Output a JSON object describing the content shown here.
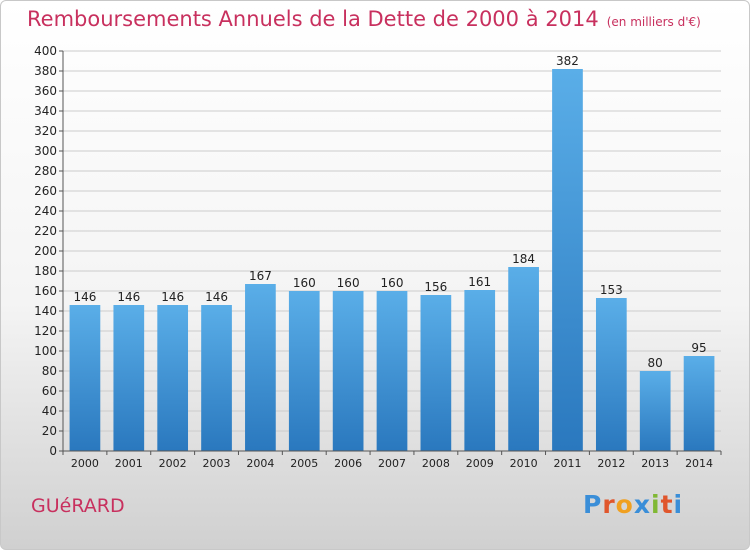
{
  "header": {
    "title": "Remboursements Annuels de la Dette de 2000 à 2014",
    "subtitle": "(en milliers d'€)"
  },
  "footer": {
    "city": "GUéRARD",
    "logo": {
      "letters": [
        "P",
        "r",
        "o",
        "x",
        "i",
        "t",
        "i"
      ],
      "colors": [
        "#3a8ed8",
        "#e0562c",
        "#f0a020",
        "#3a8ed8",
        "#80b834",
        "#e0562c",
        "#3a8ed8"
      ]
    }
  },
  "colors": {
    "title": "#c8305e",
    "bar_light": "#5aaee8",
    "bar_dark": "#2a78be",
    "grid": "#cccccc",
    "axis": "#555555",
    "text": "#222222"
  },
  "chart_data": {
    "type": "bar",
    "title": "Remboursements Annuels de la Dette de 2000 à 2014",
    "subtitle": "(en milliers d'€)",
    "xlabel": "",
    "ylabel": "",
    "categories": [
      "2000",
      "2001",
      "2002",
      "2003",
      "2004",
      "2005",
      "2006",
      "2007",
      "2008",
      "2009",
      "2010",
      "2011",
      "2012",
      "2013",
      "2014"
    ],
    "values": [
      146,
      146,
      146,
      146,
      167,
      160,
      160,
      160,
      156,
      161,
      184,
      382,
      153,
      80,
      95
    ],
    "ylim": [
      0,
      400
    ],
    "ytick_step": 20,
    "grid": true,
    "legend": "none"
  }
}
